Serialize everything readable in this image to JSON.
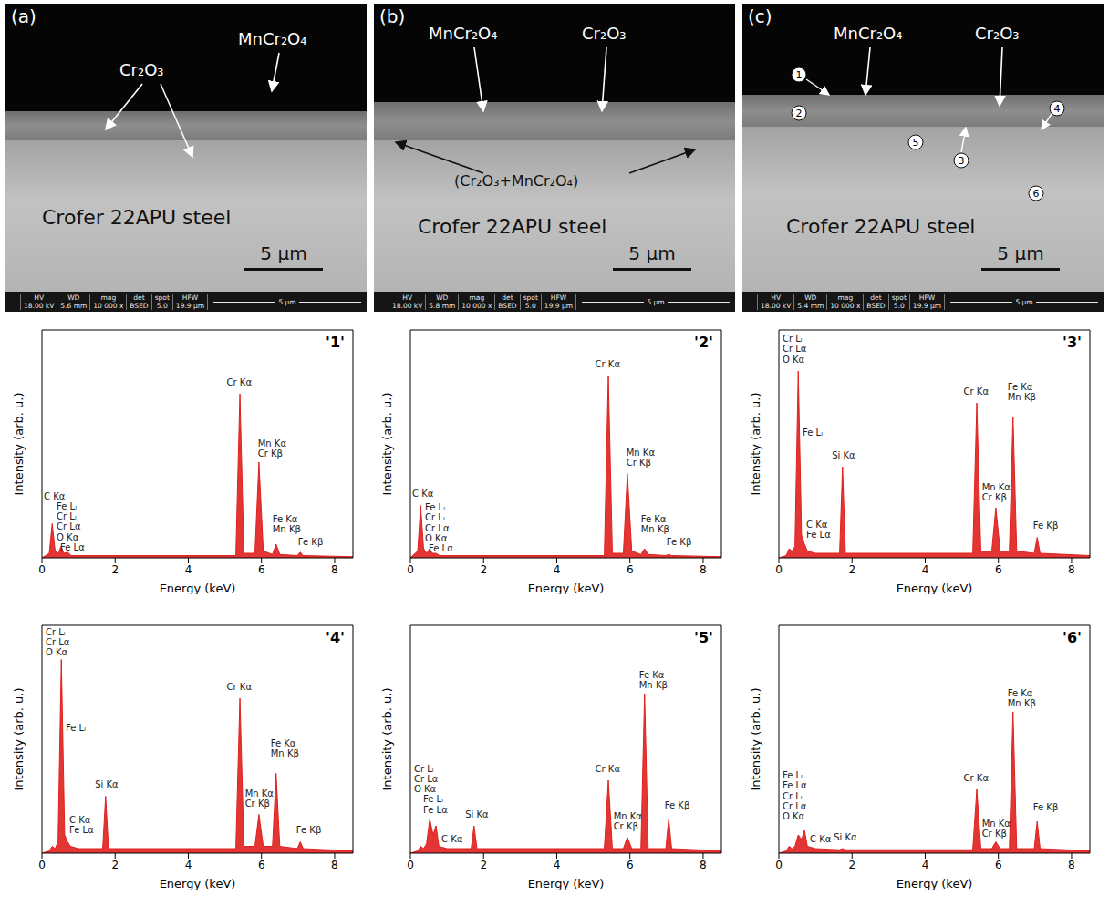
{
  "images": [
    {
      "letter": "(a)",
      "labels": [
        "Cr₂O₃",
        "MnCr₂O₄"
      ],
      "substrate": "Crofer 22APU steel",
      "scale_bar": "5 µm",
      "info": {
        "headers": [
          "HV",
          "WD",
          "mag",
          "det",
          "spot",
          "HFW"
        ],
        "values": [
          "18.00 kV",
          "5.6 mm",
          "10 000 x",
          "BSED",
          "5.0",
          "19.9 µm"
        ],
        "bar": "5 µm"
      }
    },
    {
      "letter": "(b)",
      "labels": [
        "MnCr₂O₄",
        "Cr₂O₃",
        "(Cr₂O₃+MnCr₂O₄)"
      ],
      "substrate": "Crofer 22APU steel",
      "scale_bar": "5 µm",
      "info": {
        "headers": [
          "HV",
          "WD",
          "mag",
          "det",
          "spot",
          "HFW"
        ],
        "values": [
          "18.00 kV",
          "5.8 mm",
          "10 000 x",
          "BSED",
          "5.0",
          "19.9 µm"
        ],
        "bar": "5 µm"
      }
    },
    {
      "letter": "(c)",
      "labels": [
        "MnCr₂O₄",
        "Cr₂O₃"
      ],
      "markers": [
        "1",
        "2",
        "3",
        "4",
        "5",
        "6"
      ],
      "substrate": "Crofer 22APU steel",
      "scale_bar": "5 µm",
      "info": {
        "headers": [
          "HV",
          "WD",
          "mag",
          "det",
          "spot",
          "HFW"
        ],
        "values": [
          "18.00 kV",
          "5.4 mm",
          "10 000 x",
          "BSED",
          "5.0",
          "19.9 µm"
        ],
        "bar": "5 µm"
      }
    }
  ],
  "chart_data": [
    {
      "type": "area",
      "title": "'1'",
      "xlabel": "Energy (keV)",
      "ylabel": "Intensity (arb. u.)",
      "color": "#e0201e",
      "xlim": [
        0,
        8.5
      ],
      "xticks": [
        0,
        2,
        4,
        6,
        8
      ],
      "ylim": [
        0,
        100
      ],
      "yticks": [],
      "tick_labels": "x",
      "x": [
        0,
        0.2,
        0.28,
        0.36,
        0.45,
        0.52,
        0.6,
        0.7,
        0.8,
        5.3,
        5.41,
        5.52,
        5.82,
        5.93,
        6.05,
        6.3,
        6.4,
        6.5,
        6.98,
        7.06,
        7.14,
        8.5
      ],
      "values": [
        0,
        2,
        15,
        3,
        2,
        5,
        2,
        2.5,
        1,
        1,
        72,
        2,
        2,
        42,
        3,
        1.5,
        6,
        1.5,
        1,
        2.5,
        1,
        0.5
      ],
      "annotations": [
        {
          "text": "C Kα",
          "x": 0.05,
          "y": 27
        },
        {
          "text": "Fe Lₗ",
          "x": 0.4,
          "y": 22.5
        },
        {
          "text": "Cr Lₗ",
          "x": 0.4,
          "y": 18
        },
        {
          "text": "Cr Lα",
          "x": 0.4,
          "y": 13.5
        },
        {
          "text": "O Kα",
          "x": 0.4,
          "y": 9
        },
        {
          "text": "Fe Lα",
          "x": 0.5,
          "y": 4.5
        },
        {
          "text": "Cr Kα",
          "x": 5.05,
          "y": 77
        },
        {
          "text": "Mn Kα",
          "x": 5.9,
          "y": 50
        },
        {
          "text": "Cr Kβ",
          "x": 5.9,
          "y": 45.5
        },
        {
          "text": "Fe Kα",
          "x": 6.3,
          "y": 17
        },
        {
          "text": "Mn Kβ",
          "x": 6.3,
          "y": 12.5
        },
        {
          "text": "Fe Kβ",
          "x": 7.0,
          "y": 7
        }
      ]
    },
    {
      "type": "area",
      "title": "'2'",
      "xlabel": "Energy (keV)",
      "ylabel": "Intensity (arb. u.)",
      "color": "#e0201e",
      "xlim": [
        0,
        8.5
      ],
      "xticks": [
        0,
        2,
        4,
        6,
        8
      ],
      "ylim": [
        0,
        100
      ],
      "yticks": [],
      "tick_labels": "x",
      "x": [
        0,
        0.2,
        0.28,
        0.36,
        0.45,
        0.52,
        0.6,
        0.7,
        0.8,
        5.3,
        5.41,
        5.52,
        5.82,
        5.93,
        6.05,
        6.3,
        6.4,
        6.5,
        6.98,
        7.06,
        7.14,
        8.5
      ],
      "values": [
        0,
        3,
        23,
        4,
        2,
        4,
        2,
        2,
        1,
        1,
        80,
        2,
        2,
        37,
        3,
        1.5,
        4,
        1.5,
        1,
        1.5,
        1,
        0.5
      ],
      "annotations": [
        {
          "text": "C Kα",
          "x": 0.05,
          "y": 28
        },
        {
          "text": "Fe Lₗ",
          "x": 0.4,
          "y": 22
        },
        {
          "text": "Cr Lₗ",
          "x": 0.4,
          "y": 17.5
        },
        {
          "text": "Cr Lα",
          "x": 0.4,
          "y": 13
        },
        {
          "text": "O Kα",
          "x": 0.4,
          "y": 8.5
        },
        {
          "text": "Fe Lα",
          "x": 0.5,
          "y": 4
        },
        {
          "text": "Cr Kα",
          "x": 5.05,
          "y": 85
        },
        {
          "text": "Mn Kα",
          "x": 5.9,
          "y": 46
        },
        {
          "text": "Cr Kβ",
          "x": 5.9,
          "y": 41.5
        },
        {
          "text": "Fe Kα",
          "x": 6.3,
          "y": 17
        },
        {
          "text": "Mn Kβ",
          "x": 6.3,
          "y": 12.5
        },
        {
          "text": "Fe Kβ",
          "x": 7.0,
          "y": 7
        }
      ]
    },
    {
      "type": "area",
      "title": "'3'",
      "xlabel": "Energy (keV)",
      "ylabel": "Intensity (arb. u.)",
      "color": "#e0201e",
      "xlim": [
        0,
        8.5
      ],
      "xticks": [
        0,
        2,
        4,
        6,
        8
      ],
      "ylim": [
        0,
        100
      ],
      "yticks": [],
      "tick_labels": "x",
      "x": [
        0,
        0.2,
        0.28,
        0.36,
        0.44,
        0.53,
        0.62,
        0.7,
        0.78,
        1.0,
        1.66,
        1.74,
        1.82,
        5.3,
        5.41,
        5.52,
        5.82,
        5.93,
        6.05,
        6.3,
        6.4,
        6.5,
        6.98,
        7.06,
        7.14,
        8.5
      ],
      "values": [
        0,
        1,
        4,
        3,
        5,
        82,
        10,
        6,
        3,
        2,
        2,
        40,
        2,
        2,
        68,
        3,
        3,
        22,
        3,
        3,
        62,
        3,
        2,
        9,
        2,
        1
      ],
      "annotations": [
        {
          "text": "Cr Lₗ",
          "x": 0.1,
          "y": 96
        },
        {
          "text": "Cr Lα",
          "x": 0.1,
          "y": 91.5
        },
        {
          "text": "O Kα",
          "x": 0.1,
          "y": 87
        },
        {
          "text": "Fe Lₗ",
          "x": 0.65,
          "y": 55
        },
        {
          "text": "C Kα",
          "x": 0.75,
          "y": 14.5
        },
        {
          "text": "Fe Lα",
          "x": 0.75,
          "y": 10
        },
        {
          "text": "Si Kα",
          "x": 1.45,
          "y": 45
        },
        {
          "text": "Cr Kα",
          "x": 5.05,
          "y": 73
        },
        {
          "text": "Fe Kα",
          "x": 6.25,
          "y": 75
        },
        {
          "text": "Mn Kβ",
          "x": 6.25,
          "y": 70.5
        },
        {
          "text": "Mn Kα",
          "x": 5.55,
          "y": 31
        },
        {
          "text": "Cr Kβ",
          "x": 5.55,
          "y": 26.5
        },
        {
          "text": "Fe Kβ",
          "x": 6.95,
          "y": 14
        }
      ]
    },
    {
      "type": "area",
      "title": "'4'",
      "xlabel": "Energy (keV)",
      "ylabel": "Intensity (arb. u.)",
      "color": "#e0201e",
      "xlim": [
        0,
        8.5
      ],
      "xticks": [
        0,
        2,
        4,
        6,
        8
      ],
      "ylim": [
        0,
        100
      ],
      "yticks": [],
      "tick_labels": "x",
      "x": [
        0,
        0.2,
        0.28,
        0.36,
        0.44,
        0.53,
        0.62,
        0.7,
        0.78,
        1.0,
        1.66,
        1.74,
        1.82,
        5.3,
        5.41,
        5.52,
        5.82,
        5.93,
        6.05,
        6.3,
        6.4,
        6.5,
        6.98,
        7.06,
        7.14,
        8.5
      ],
      "values": [
        0,
        1,
        3,
        2,
        5,
        85,
        8,
        5,
        3,
        2,
        2,
        25,
        2,
        2,
        68,
        3,
        3,
        17,
        3,
        3,
        35,
        3,
        2,
        5,
        2,
        1
      ],
      "annotations": [
        {
          "text": "Cr Lₗ",
          "x": 0.1,
          "y": 97
        },
        {
          "text": "Cr Lα",
          "x": 0.1,
          "y": 92.5
        },
        {
          "text": "O Kα",
          "x": 0.1,
          "y": 88
        },
        {
          "text": "Fe Lₗ",
          "x": 0.65,
          "y": 55
        },
        {
          "text": "C Kα",
          "x": 0.75,
          "y": 14.5
        },
        {
          "text": "Fe Lα",
          "x": 0.75,
          "y": 10
        },
        {
          "text": "Si Kα",
          "x": 1.45,
          "y": 30
        },
        {
          "text": "Cr Kα",
          "x": 5.05,
          "y": 73
        },
        {
          "text": "Fe Kα",
          "x": 6.25,
          "y": 48
        },
        {
          "text": "Mn Kβ",
          "x": 6.25,
          "y": 43.5
        },
        {
          "text": "Mn Kα",
          "x": 5.55,
          "y": 26
        },
        {
          "text": "Cr Kβ",
          "x": 5.55,
          "y": 21.5
        },
        {
          "text": "Fe Kβ",
          "x": 6.95,
          "y": 10
        }
      ]
    },
    {
      "type": "area",
      "title": "'5'",
      "xlabel": "Energy (keV)",
      "ylabel": "Intensity (arb. u.)",
      "color": "#e0201e",
      "xlim": [
        0,
        8.5
      ],
      "xticks": [
        0,
        2,
        4,
        6,
        8
      ],
      "ylim": [
        0,
        100
      ],
      "yticks": [],
      "tick_labels": "x",
      "x": [
        0,
        0.2,
        0.28,
        0.36,
        0.44,
        0.53,
        0.62,
        0.7,
        0.78,
        1.0,
        1.66,
        1.74,
        1.82,
        5.3,
        5.41,
        5.52,
        5.82,
        5.93,
        6.05,
        6.3,
        6.4,
        6.5,
        6.98,
        7.06,
        7.14,
        8.5
      ],
      "values": [
        0,
        1,
        3,
        2,
        4,
        15,
        8,
        12,
        3,
        2,
        2,
        12,
        2,
        2,
        32,
        2,
        2,
        7,
        2,
        2,
        70,
        2,
        2,
        15,
        2,
        1
      ],
      "annotations": [
        {
          "text": "Cr Lₗ",
          "x": 0.1,
          "y": 37
        },
        {
          "text": "Cr Lα",
          "x": 0.1,
          "y": 32.5
        },
        {
          "text": "O Kα",
          "x": 0.1,
          "y": 28
        },
        {
          "text": "Fe Lₗ",
          "x": 0.35,
          "y": 23.5
        },
        {
          "text": "Fe Lα",
          "x": 0.35,
          "y": 19
        },
        {
          "text": "C Kα",
          "x": 0.85,
          "y": 6
        },
        {
          "text": "Si Kα",
          "x": 1.5,
          "y": 17
        },
        {
          "text": "Cr Kα",
          "x": 5.05,
          "y": 37
        },
        {
          "text": "Fe Kα",
          "x": 6.25,
          "y": 78
        },
        {
          "text": "Mn Kβ",
          "x": 6.25,
          "y": 73.5
        },
        {
          "text": "Mn Kα",
          "x": 5.55,
          "y": 16
        },
        {
          "text": "Cr Kβ",
          "x": 5.55,
          "y": 11.5
        },
        {
          "text": "Fe Kβ",
          "x": 6.95,
          "y": 21
        }
      ]
    },
    {
      "type": "area",
      "title": "'6'",
      "xlabel": "Energy (keV)",
      "ylabel": "Intensity (arb. u.)",
      "color": "#e0201e",
      "xlim": [
        0,
        8.5
      ],
      "xticks": [
        0,
        2,
        4,
        6,
        8
      ],
      "ylim": [
        0,
        100
      ],
      "yticks": [],
      "tick_labels": "x",
      "x": [
        0,
        0.2,
        0.28,
        0.36,
        0.44,
        0.53,
        0.62,
        0.7,
        0.78,
        1.0,
        1.66,
        1.74,
        1.82,
        5.3,
        5.41,
        5.52,
        5.82,
        5.93,
        6.05,
        6.3,
        6.4,
        6.5,
        6.98,
        7.06,
        7.14,
        8.5
      ],
      "values": [
        0,
        1,
        3,
        2,
        3,
        8,
        6,
        10,
        3,
        2,
        1.5,
        2,
        1.5,
        1.5,
        28,
        2,
        2,
        5,
        2,
        2,
        62,
        2,
        2,
        14,
        2,
        1
      ],
      "annotations": [
        {
          "text": "Fe Lₗ",
          "x": 0.1,
          "y": 34
        },
        {
          "text": "Fe Lα",
          "x": 0.1,
          "y": 29.5
        },
        {
          "text": "Cr Lₗ",
          "x": 0.1,
          "y": 25
        },
        {
          "text": "Cr Lα",
          "x": 0.1,
          "y": 20.5
        },
        {
          "text": "O Kα",
          "x": 0.1,
          "y": 16
        },
        {
          "text": "C Kα",
          "x": 0.85,
          "y": 6
        },
        {
          "text": "Si Kα",
          "x": 1.5,
          "y": 7
        },
        {
          "text": "Cr Kα",
          "x": 5.05,
          "y": 33
        },
        {
          "text": "Fe Kα",
          "x": 6.25,
          "y": 70
        },
        {
          "text": "Mn Kβ",
          "x": 6.25,
          "y": 65.5
        },
        {
          "text": "Mn Kα",
          "x": 5.55,
          "y": 13
        },
        {
          "text": "Cr Kβ",
          "x": 5.55,
          "y": 8.5
        },
        {
          "text": "Fe Kβ",
          "x": 6.95,
          "y": 20
        }
      ]
    }
  ]
}
